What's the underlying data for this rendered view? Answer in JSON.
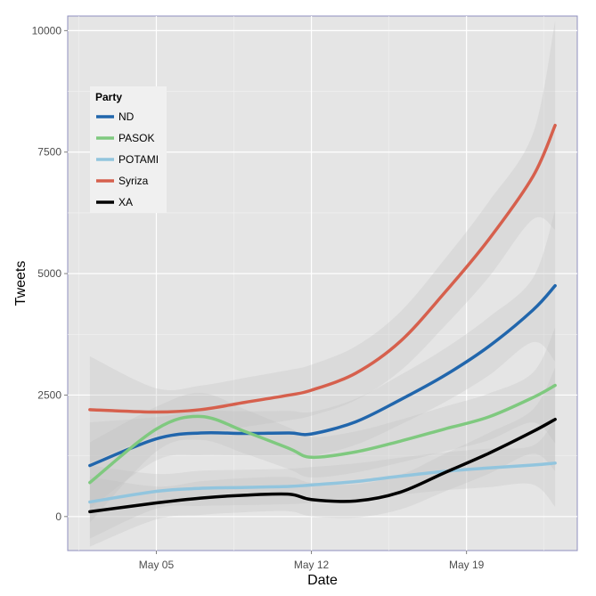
{
  "chart_data": {
    "type": "line",
    "title": "",
    "xlabel": "Date",
    "ylabel": "Tweets",
    "x_ticks": [
      "May 05",
      "May 12",
      "May 19"
    ],
    "y_ticks": [
      0,
      2500,
      5000,
      7500,
      10000
    ],
    "ylim": [
      -700,
      10300
    ],
    "xlim": [
      "2014-05-01",
      "2014-05-24"
    ],
    "grid": true,
    "legend": {
      "title": "Party",
      "placement": "top-left"
    },
    "x": [
      "2014-05-02",
      "2014-05-05",
      "2014-05-07",
      "2014-05-09",
      "2014-05-11",
      "2014-05-12",
      "2014-05-14",
      "2014-05-16",
      "2014-05-18",
      "2014-05-20",
      "2014-05-22",
      "2014-05-23"
    ],
    "series": [
      {
        "name": "ND",
        "color": "#2166ac",
        "values": [
          1050,
          1600,
          1720,
          1710,
          1720,
          1700,
          1950,
          2400,
          2900,
          3500,
          4250,
          4750
        ]
      },
      {
        "name": "PASOK",
        "color": "#7fc97f",
        "values": [
          700,
          1800,
          2060,
          1750,
          1400,
          1220,
          1330,
          1550,
          1800,
          2050,
          2450,
          2700
        ]
      },
      {
        "name": "POTAMI",
        "color": "#92c5de",
        "values": [
          300,
          520,
          580,
          600,
          620,
          650,
          720,
          830,
          930,
          1000,
          1060,
          1100
        ]
      },
      {
        "name": "Syriza",
        "color": "#d6604d",
        "values": [
          2200,
          2150,
          2200,
          2350,
          2500,
          2600,
          2950,
          3600,
          4600,
          5700,
          7000,
          8050
        ]
      },
      {
        "name": "XA",
        "color": "#000000",
        "values": [
          100,
          280,
          380,
          440,
          460,
          350,
          320,
          500,
          900,
          1300,
          1750,
          2000
        ]
      }
    ]
  }
}
